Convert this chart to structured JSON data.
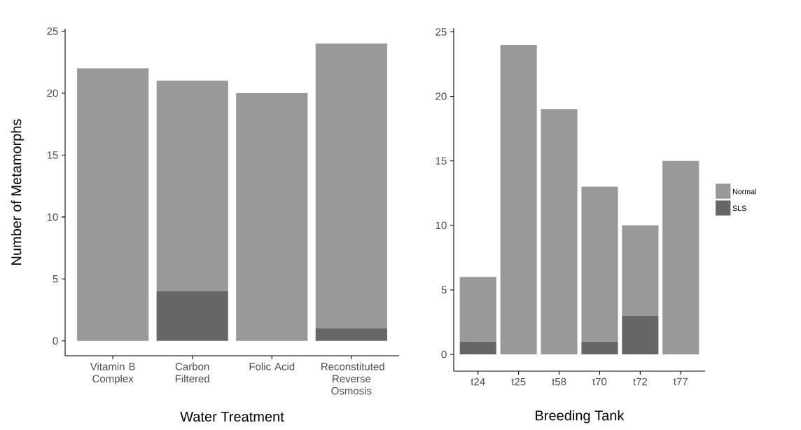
{
  "chart_data": [
    {
      "type": "bar",
      "stacked": true,
      "xlabel": "Water Treatment",
      "ylabel": "Number of Metamorphs",
      "categories": [
        "Vitamin B Complex",
        "Carbon Filtered",
        "Folic Acid",
        "Reconstituted Reverse Osmosis"
      ],
      "ylim": [
        -1.2,
        25.2
      ],
      "yticks": [
        0,
        5,
        10,
        15,
        20,
        25
      ],
      "series": [
        {
          "color": "#666666",
          "values": [
            0,
            4,
            0,
            1
          ]
        },
        {
          "color": "#999999",
          "values": [
            22,
            17,
            20,
            23
          ]
        }
      ]
    },
    {
      "type": "bar",
      "stacked": true,
      "xlabel": "Breeding Tank",
      "categories": [
        "t24",
        "t25",
        "t58",
        "t70",
        "t72",
        "t77"
      ],
      "ylim": [
        -1.3,
        25.3
      ],
      "yticks": [
        0,
        5,
        10,
        15,
        20,
        25
      ],
      "legend": "right",
      "series": [
        {
          "name": "SLS",
          "color": "#666666",
          "values": [
            1,
            0,
            0,
            1,
            3,
            0
          ]
        },
        {
          "name": "Normal",
          "color": "#999999",
          "values": [
            5,
            24,
            19,
            12,
            7,
            15
          ]
        }
      ]
    }
  ]
}
